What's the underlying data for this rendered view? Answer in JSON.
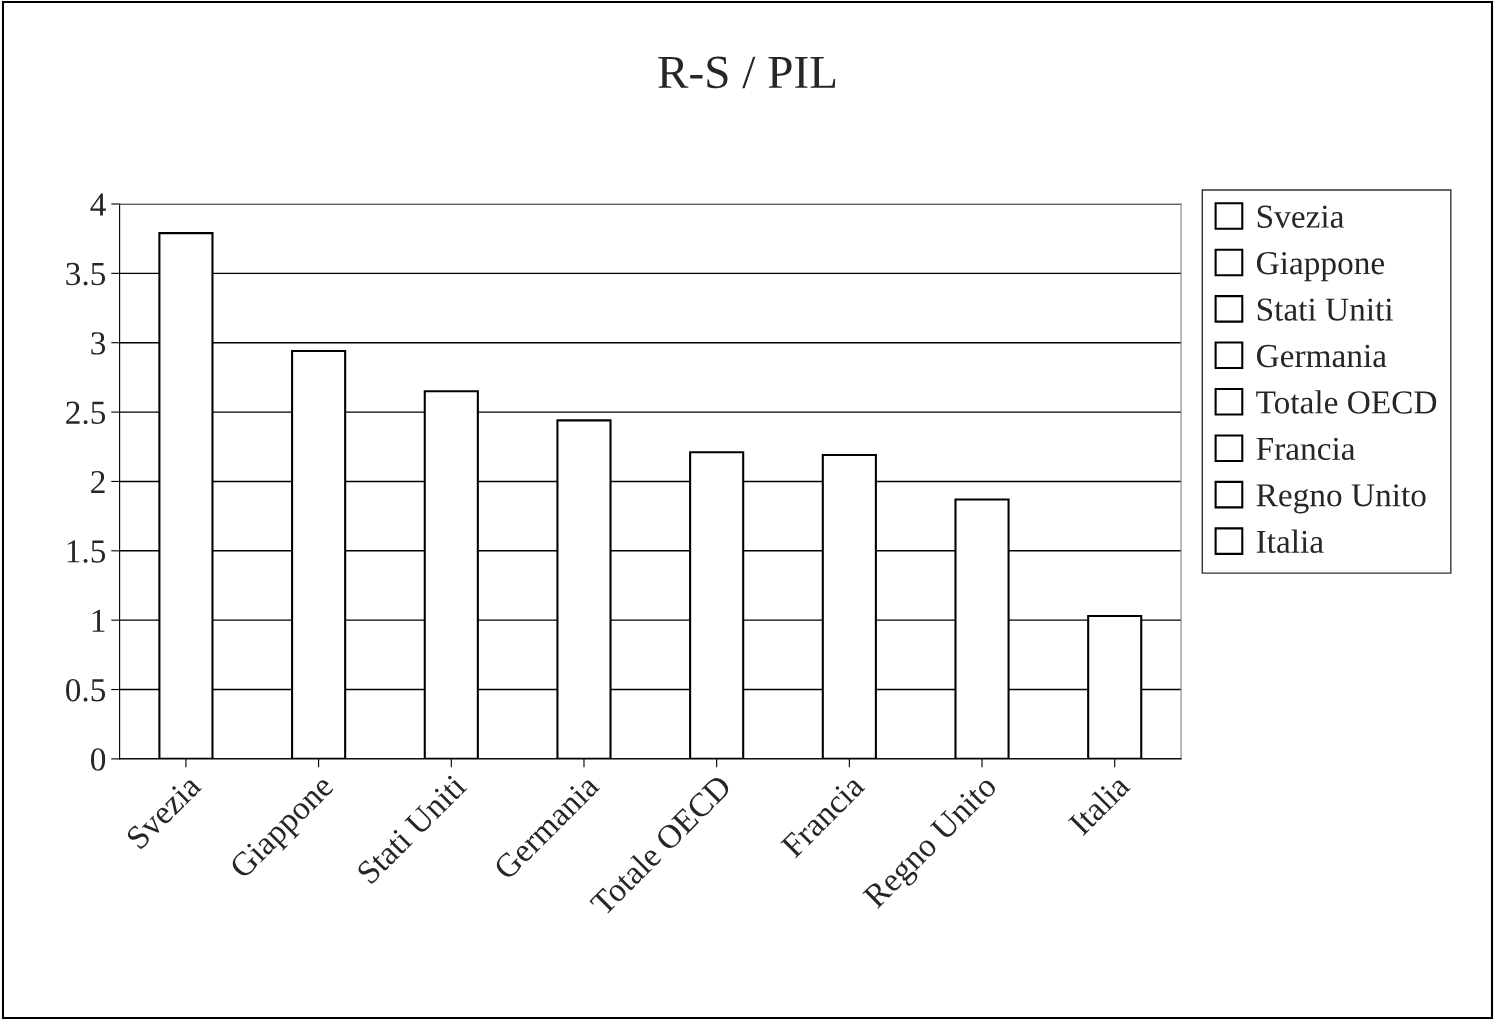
{
  "chart_data": {
    "type": "bar",
    "title": "R-S / PIL",
    "categories": [
      "Svezia",
      "Giappone",
      "Stati Uniti",
      "Germania",
      "Totale OECD",
      "Francia",
      "Regno Unito",
      "Italia"
    ],
    "series": [
      {
        "name": "Svezia",
        "color": "#ffffff",
        "values": [
          3.79,
          null,
          null,
          null,
          null,
          null,
          null,
          null
        ]
      },
      {
        "name": "Giappone",
        "color": "#ffffff",
        "values": [
          null,
          2.94,
          null,
          null,
          null,
          null,
          null,
          null
        ]
      },
      {
        "name": "Stati Uniti",
        "color": "#ffffff",
        "values": [
          null,
          null,
          2.65,
          null,
          null,
          null,
          null,
          null
        ]
      },
      {
        "name": "Germania",
        "color": "#ffffff",
        "values": [
          null,
          null,
          null,
          2.44,
          null,
          null,
          null,
          null
        ]
      },
      {
        "name": "Totale OECD",
        "color": "#ffffff",
        "values": [
          null,
          null,
          null,
          null,
          2.21,
          null,
          null,
          null
        ]
      },
      {
        "name": "Francia",
        "color": "#ffffff",
        "values": [
          null,
          null,
          null,
          null,
          null,
          2.19,
          null,
          null
        ]
      },
      {
        "name": "Regno Unito",
        "color": "#ffffff",
        "values": [
          null,
          null,
          null,
          null,
          null,
          null,
          1.87,
          null
        ]
      },
      {
        "name": "Italia",
        "color": "#ffffff",
        "values": [
          null,
          null,
          null,
          null,
          null,
          null,
          null,
          1.03
        ]
      }
    ],
    "ylim": [
      0,
      4
    ],
    "yticks": [
      0,
      0.5,
      1,
      1.5,
      2,
      2.5,
      3,
      3.5,
      4
    ],
    "grid": "y",
    "legend": "right"
  }
}
